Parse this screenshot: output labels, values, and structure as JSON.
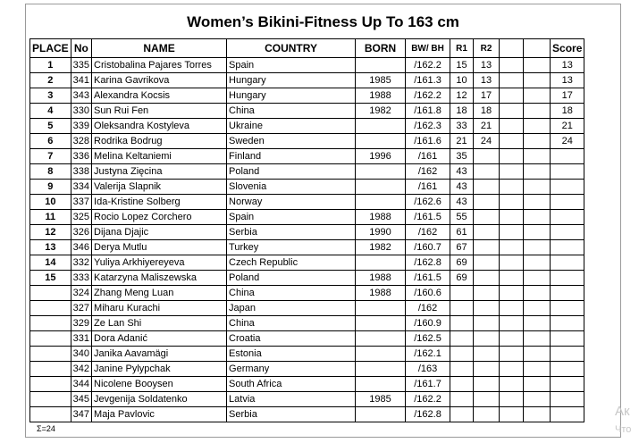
{
  "title": "Women’s Bikini-Fitness Up To 163 cm",
  "columns": [
    "PLACE",
    "No",
    "NAME",
    "COUNTRY",
    "BORN",
    "BW/ BH",
    "R1",
    "R2",
    "",
    "",
    "Score"
  ],
  "rows": [
    {
      "place": "1",
      "no": "335",
      "name": "Cristobalina Pajares Torres",
      "country": "Spain",
      "born": "",
      "bw": "/162.2",
      "r1": "15",
      "r2": "13",
      "score": "13"
    },
    {
      "place": "2",
      "no": "341",
      "name": "Karina Gavrikova",
      "country": "Hungary",
      "born": "1985",
      "bw": "/161.3",
      "r1": "10",
      "r2": "13",
      "score": "13"
    },
    {
      "place": "3",
      "no": "343",
      "name": "Alexandra Kocsis",
      "country": "Hungary",
      "born": "1988",
      "bw": "/162.2",
      "r1": "12",
      "r2": "17",
      "score": "17"
    },
    {
      "place": "4",
      "no": "330",
      "name": "Sun Rui Fen",
      "country": "China",
      "born": "1982",
      "bw": "/161.8",
      "r1": "18",
      "r2": "18",
      "score": "18"
    },
    {
      "place": "5",
      "no": "339",
      "name": "Oleksandra Kostyleva",
      "country": "Ukraine",
      "born": "",
      "bw": "/162.3",
      "r1": "33",
      "r2": "21",
      "score": "21"
    },
    {
      "place": "6",
      "no": "328",
      "name": "Rodrika Bodrug",
      "country": "Sweden",
      "born": "",
      "bw": "/161.6",
      "r1": "21",
      "r2": "24",
      "score": "24"
    },
    {
      "place": "7",
      "no": "336",
      "name": "Melina Keltaniemi",
      "country": "Finland",
      "born": "1996",
      "bw": "/161",
      "r1": "35",
      "r2": "",
      "score": ""
    },
    {
      "place": "8",
      "no": "338",
      "name": "Justyna Zięcina",
      "country": "Poland",
      "born": "",
      "bw": "/162",
      "r1": "43",
      "r2": "",
      "score": ""
    },
    {
      "place": "9",
      "no": "334",
      "name": "Valerija Slapnik",
      "country": "Slovenia",
      "born": "",
      "bw": "/161",
      "r1": "43",
      "r2": "",
      "score": ""
    },
    {
      "place": "10",
      "no": "337",
      "name": "Ida-Kristine Solberg",
      "country": "Norway",
      "born": "",
      "bw": "/162.6",
      "r1": "43",
      "r2": "",
      "score": ""
    },
    {
      "place": "11",
      "no": "325",
      "name": "Rocio Lopez Corchero",
      "country": "Spain",
      "born": "1988",
      "bw": "/161.5",
      "r1": "55",
      "r2": "",
      "score": ""
    },
    {
      "place": "12",
      "no": "326",
      "name": "Dijana Djajic",
      "country": "Serbia",
      "born": "1990",
      "bw": "/162",
      "r1": "61",
      "r2": "",
      "score": ""
    },
    {
      "place": "13",
      "no": "346",
      "name": "Derya Mutlu",
      "country": "Turkey",
      "born": "1982",
      "bw": "/160.7",
      "r1": "67",
      "r2": "",
      "score": ""
    },
    {
      "place": "14",
      "no": "332",
      "name": "Yuliya Arkhiyereyeva",
      "country": "Czech Republic",
      "born": "",
      "bw": "/162.8",
      "r1": "69",
      "r2": "",
      "score": ""
    },
    {
      "place": "15",
      "no": "333",
      "name": "Katarzyna Maliszewska",
      "country": "Poland",
      "born": "1988",
      "bw": "/161.5",
      "r1": "69",
      "r2": "",
      "score": ""
    },
    {
      "place": "",
      "no": "324",
      "name": "Zhang Meng Luan",
      "country": "China",
      "born": "1988",
      "bw": "/160.6",
      "r1": "",
      "r2": "",
      "score": ""
    },
    {
      "place": "",
      "no": "327",
      "name": "Miharu Kurachi",
      "country": "Japan",
      "born": "",
      "bw": "/162",
      "r1": "",
      "r2": "",
      "score": ""
    },
    {
      "place": "",
      "no": "329",
      "name": "Ze Lan Shi",
      "country": "China",
      "born": "",
      "bw": "/160.9",
      "r1": "",
      "r2": "",
      "score": ""
    },
    {
      "place": "",
      "no": "331",
      "name": "Dora Adanić",
      "country": "Croatia",
      "born": "",
      "bw": "/162.5",
      "r1": "",
      "r2": "",
      "score": ""
    },
    {
      "place": "",
      "no": "340",
      "name": "Janika Aavamägi",
      "country": "Estonia",
      "born": "",
      "bw": "/162.1",
      "r1": "",
      "r2": "",
      "score": ""
    },
    {
      "place": "",
      "no": "342",
      "name": "Janine Pylypchak",
      "country": "Germany",
      "born": "",
      "bw": "/163",
      "r1": "",
      "r2": "",
      "score": ""
    },
    {
      "place": "",
      "no": "344",
      "name": "Nicolene Booysen",
      "country": "South Africa",
      "born": "",
      "bw": "/161.7",
      "r1": "",
      "r2": "",
      "score": ""
    },
    {
      "place": "",
      "no": "345",
      "name": "Jevgenija Soldatenko",
      "country": "Latvia",
      "born": "1985",
      "bw": "/162.2",
      "r1": "",
      "r2": "",
      "score": ""
    },
    {
      "place": "",
      "no": "347",
      "name": "Maja Pavlovic",
      "country": "Serbia",
      "born": "",
      "bw": "/162.8",
      "r1": "",
      "r2": "",
      "score": ""
    }
  ],
  "footer": {
    "sigma": "Σ=24"
  },
  "watermark": {
    "line1": "Ак",
    "line2": "Что"
  }
}
